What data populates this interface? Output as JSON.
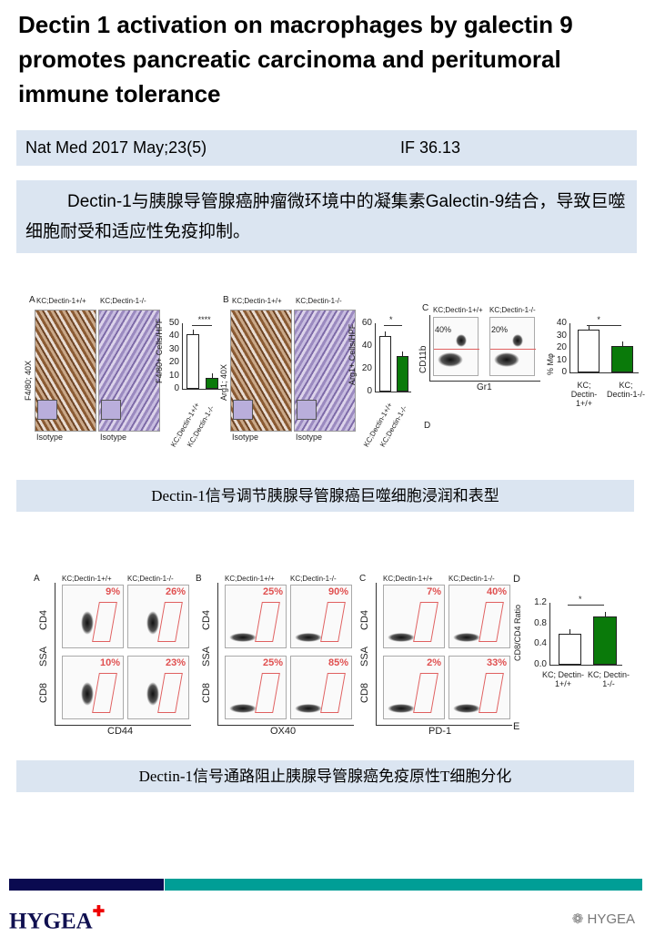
{
  "title": "Dectin 1 activation on macrophages by galectin 9 promotes pancreatic carcinoma and peritumoral immune tolerance",
  "citation": {
    "journal": "Nat Med 2017 May;23(5)",
    "impact_factor": "IF 36.13"
  },
  "summary": "Dectin-1与胰腺导管腺癌肿瘤微环境中的凝集素Galectin-9结合，导致巨噬细胞耐受和适应性免疫抑制。",
  "figure1": {
    "genotype_wt": "KC;Dectin-1+/+",
    "genotype_ko": "KC;Dectin-1-/-",
    "isotype": "Isotype",
    "panel_a": {
      "label": "A",
      "stain": "F4/80; 40X",
      "ylabel": "F4/80+ Cells/HPF",
      "yticks": [
        "0",
        "10",
        "20",
        "30",
        "40",
        "50"
      ],
      "ymax": 50,
      "values": [
        42,
        8.5
      ],
      "sig": "****"
    },
    "panel_b": {
      "label": "B",
      "stain": "Arg1; 40X",
      "ylabel": "Arg1+ Cells/HPF",
      "yticks": [
        "0",
        "20",
        "40",
        "60"
      ],
      "ymax": 60,
      "values": [
        49,
        31
      ],
      "sig": "*"
    },
    "panel_c": {
      "label": "C",
      "xaxis": "Gr1",
      "yaxis": "CD11b",
      "pcts": [
        "40%",
        "20%"
      ],
      "ylabel": "% Mφ",
      "yticks": [
        "0",
        "10",
        "20",
        "30",
        "40"
      ],
      "ymax": 40,
      "values": [
        34.5,
        21.5
      ],
      "sig": "*",
      "cat_wt": "KC; Dectin-1+/+",
      "cat_ko": "KC; Dectin-1-/-"
    },
    "panel_d_label": "D",
    "colors": {
      "wt": "#ffffff",
      "ko": "#0a7a0a"
    }
  },
  "caption1": "Dectin-1信号调节胰腺导管腺癌巨噬细胞浸润和表型",
  "figure2": {
    "ssa": "SSA",
    "panels": [
      {
        "label": "A",
        "xaxis": "CD44",
        "pcts": [
          "9%",
          "26%",
          "10%",
          "23%"
        ]
      },
      {
        "label": "B",
        "xaxis": "OX40",
        "pcts": [
          "25%",
          "90%",
          "25%",
          "85%"
        ]
      },
      {
        "label": "C",
        "xaxis": "PD-1",
        "pcts": [
          "7%",
          "40%",
          "2%",
          "33%"
        ]
      }
    ],
    "rows": [
      "CD4",
      "CD8"
    ],
    "panel_d": {
      "label": "D",
      "ylabel": "CD8/CD4 Ratio",
      "yticks": [
        "0.0",
        "0.4",
        "0.8",
        "1.2"
      ],
      "ymax": 1.2,
      "values": [
        0.6,
        0.93
      ],
      "sig": "*",
      "cat_wt": "KC; Dectin-1+/+",
      "cat_ko": "KC; Dectin-1-/-"
    },
    "panel_e_label": "E"
  },
  "caption2": "Dectin-1信号通路阻止胰腺导管腺癌免疫原性T细胞分化",
  "footer": {
    "logo": "HYGEA",
    "watermark": "HYGEA"
  }
}
